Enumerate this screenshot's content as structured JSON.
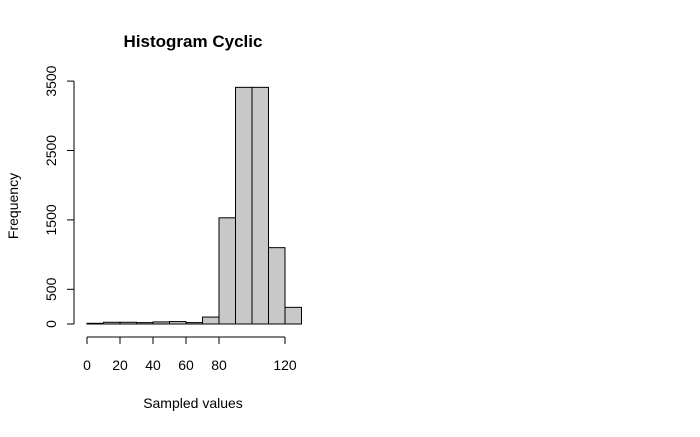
{
  "chart_data": {
    "type": "histogram",
    "title": "Histogram Cyclic",
    "xlabel": "Sampled values",
    "ylabel": "Frequency",
    "xlim": [
      0,
      130
    ],
    "ylim": [
      0,
      3500
    ],
    "x_ticks": [
      0,
      20,
      40,
      60,
      80,
      120
    ],
    "y_ticks": [
      0,
      500,
      1500,
      2500,
      3500
    ],
    "bins": [
      {
        "start": 0,
        "end": 10,
        "count": 10
      },
      {
        "start": 10,
        "end": 20,
        "count": 25
      },
      {
        "start": 20,
        "end": 30,
        "count": 25
      },
      {
        "start": 30,
        "end": 40,
        "count": 20
      },
      {
        "start": 40,
        "end": 50,
        "count": 30
      },
      {
        "start": 50,
        "end": 60,
        "count": 35
      },
      {
        "start": 60,
        "end": 70,
        "count": 20
      },
      {
        "start": 70,
        "end": 80,
        "count": 100
      },
      {
        "start": 80,
        "end": 90,
        "count": 1530
      },
      {
        "start": 90,
        "end": 100,
        "count": 3410
      },
      {
        "start": 100,
        "end": 110,
        "count": 3410
      },
      {
        "start": 110,
        "end": 120,
        "count": 1100
      },
      {
        "start": 120,
        "end": 130,
        "count": 240
      }
    ],
    "bar_color": "#c8c8c8",
    "grid": false,
    "legend": "none"
  }
}
